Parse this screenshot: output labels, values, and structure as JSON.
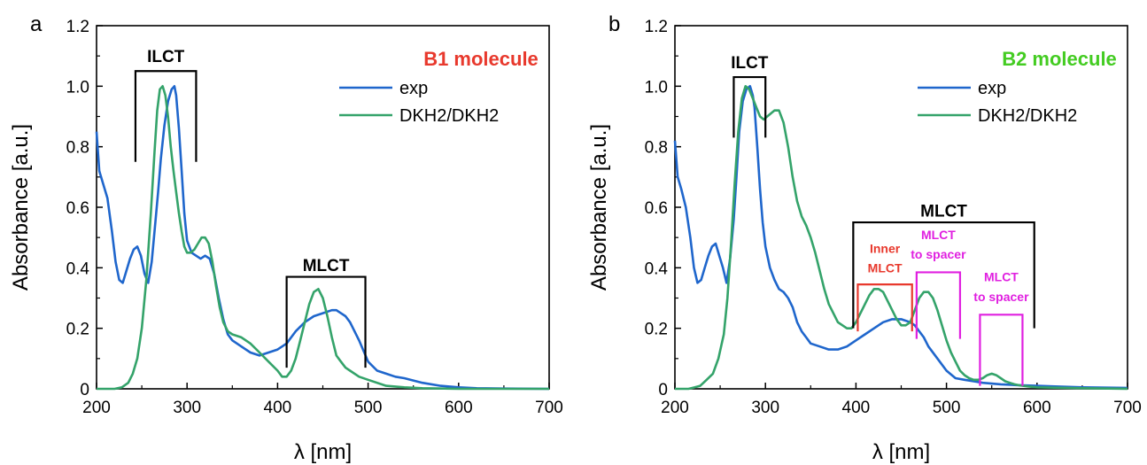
{
  "chart_data": [
    {
      "panel_label": "a",
      "type": "line",
      "xlabel": "λ [nm]",
      "ylabel": "Absorbance [a.u.]",
      "xlim": [
        200,
        700
      ],
      "ylim": [
        0,
        1.2
      ],
      "xticks": [
        "200",
        "300",
        "400",
        "500",
        "600",
        "700"
      ],
      "yticks": [
        "0",
        "0.2",
        "0.4",
        "0.6",
        "0.8",
        "1.0",
        "1.2"
      ],
      "grid": false,
      "legend_position": "top-right",
      "legend_title": "B1 molecule",
      "legend_title_color": "#e8392d",
      "series": [
        {
          "name": "exp",
          "color": "#1f66cc",
          "x": [
            200,
            203,
            207,
            212,
            217,
            221,
            225,
            229,
            233,
            237,
            241,
            245,
            249,
            253,
            257,
            261,
            265,
            268,
            271,
            275,
            279,
            283,
            286,
            288,
            291,
            294,
            297,
            300,
            305,
            310,
            315,
            320,
            325,
            330,
            335,
            340,
            345,
            350,
            360,
            370,
            380,
            390,
            400,
            410,
            420,
            430,
            440,
            450,
            460,
            465,
            470,
            475,
            480,
            490,
            500,
            510,
            520,
            530,
            540,
            560,
            580,
            600,
            620,
            650,
            700
          ],
          "y": [
            0.85,
            0.72,
            0.68,
            0.63,
            0.52,
            0.42,
            0.36,
            0.35,
            0.39,
            0.43,
            0.46,
            0.47,
            0.44,
            0.38,
            0.35,
            0.42,
            0.55,
            0.65,
            0.76,
            0.87,
            0.95,
            0.99,
            1.0,
            0.97,
            0.86,
            0.72,
            0.58,
            0.49,
            0.45,
            0.44,
            0.43,
            0.44,
            0.43,
            0.38,
            0.3,
            0.23,
            0.18,
            0.16,
            0.14,
            0.12,
            0.11,
            0.12,
            0.13,
            0.15,
            0.19,
            0.22,
            0.24,
            0.25,
            0.26,
            0.26,
            0.25,
            0.24,
            0.22,
            0.16,
            0.09,
            0.06,
            0.05,
            0.04,
            0.035,
            0.02,
            0.01,
            0.005,
            0.002,
            0.001,
            0.0
          ]
        },
        {
          "name": "DKH2/DKH2",
          "color": "#34a36a",
          "x": [
            200,
            220,
            228,
            235,
            240,
            245,
            250,
            255,
            260,
            264,
            267,
            270,
            273,
            276,
            279,
            282,
            285,
            288,
            291,
            294,
            297,
            300,
            304,
            308,
            312,
            316,
            320,
            324,
            328,
            332,
            336,
            340,
            345,
            350,
            360,
            370,
            380,
            390,
            400,
            405,
            410,
            415,
            420,
            425,
            430,
            435,
            440,
            445,
            450,
            455,
            460,
            465,
            470,
            475,
            480,
            490,
            500,
            520,
            540,
            560,
            600,
            700
          ],
          "y": [
            0.0,
            0.0,
            0.005,
            0.02,
            0.05,
            0.1,
            0.2,
            0.36,
            0.58,
            0.78,
            0.92,
            0.99,
            1.0,
            0.97,
            0.9,
            0.8,
            0.72,
            0.65,
            0.58,
            0.52,
            0.47,
            0.45,
            0.45,
            0.46,
            0.48,
            0.5,
            0.5,
            0.48,
            0.42,
            0.34,
            0.27,
            0.22,
            0.19,
            0.18,
            0.17,
            0.15,
            0.12,
            0.09,
            0.06,
            0.04,
            0.04,
            0.06,
            0.1,
            0.16,
            0.22,
            0.28,
            0.32,
            0.33,
            0.3,
            0.24,
            0.17,
            0.11,
            0.09,
            0.07,
            0.06,
            0.04,
            0.03,
            0.01,
            0.005,
            0.002,
            0.0,
            0.0
          ]
        }
      ],
      "brackets": [
        {
          "label": "ILCT",
          "color": "#000000",
          "x1": 243,
          "x2": 310,
          "top": 1.05,
          "bottom": 0.75,
          "label_y": 1.08
        },
        {
          "label": "MLCT",
          "color": "#000000",
          "x1": 410,
          "x2": 497,
          "top": 0.37,
          "bottom": 0.07,
          "label_y": 0.39
        }
      ]
    },
    {
      "panel_label": "b",
      "type": "line",
      "xlabel": "λ [nm]",
      "ylabel": "Absorbance [a.u.]",
      "xlim": [
        200,
        700
      ],
      "ylim": [
        0,
        1.2
      ],
      "xticks": [
        "200",
        "300",
        "400",
        "500",
        "600",
        "700"
      ],
      "yticks": [
        "0",
        "0.2",
        "0.4",
        "0.6",
        "0.8",
        "1.0",
        "1.2"
      ],
      "grid": false,
      "legend_position": "top-right",
      "legend_title": "B2 molecule",
      "legend_title_color": "#44cc22",
      "series": [
        {
          "name": "exp",
          "color": "#1f66cc",
          "x": [
            200,
            203,
            207,
            212,
            217,
            221,
            225,
            229,
            233,
            237,
            241,
            245,
            249,
            253,
            257,
            261,
            265,
            268,
            271,
            275,
            279,
            283,
            286,
            288,
            291,
            294,
            297,
            300,
            305,
            310,
            315,
            320,
            325,
            330,
            335,
            340,
            345,
            350,
            360,
            370,
            380,
            390,
            400,
            410,
            420,
            430,
            440,
            450,
            460,
            465,
            470,
            475,
            480,
            490,
            500,
            510,
            520,
            530,
            540,
            560,
            580,
            600,
            620,
            650,
            700
          ],
          "y": [
            0.82,
            0.7,
            0.66,
            0.6,
            0.5,
            0.4,
            0.35,
            0.36,
            0.4,
            0.44,
            0.47,
            0.48,
            0.44,
            0.4,
            0.35,
            0.43,
            0.56,
            0.7,
            0.85,
            0.95,
            0.99,
            1.0,
            0.97,
            0.93,
            0.8,
            0.66,
            0.55,
            0.47,
            0.4,
            0.36,
            0.33,
            0.32,
            0.3,
            0.27,
            0.22,
            0.19,
            0.17,
            0.15,
            0.14,
            0.13,
            0.13,
            0.14,
            0.16,
            0.18,
            0.2,
            0.22,
            0.23,
            0.23,
            0.22,
            0.21,
            0.19,
            0.17,
            0.14,
            0.1,
            0.06,
            0.035,
            0.03,
            0.025,
            0.02,
            0.015,
            0.012,
            0.01,
            0.008,
            0.005,
            0.003
          ]
        },
        {
          "name": "DKH2/DKH2",
          "color": "#34a36a",
          "x": [
            200,
            215,
            222,
            228,
            235,
            242,
            248,
            254,
            258,
            262,
            266,
            270,
            274,
            278,
            282,
            286,
            290,
            294,
            298,
            302,
            306,
            310,
            315,
            320,
            325,
            330,
            335,
            340,
            345,
            350,
            355,
            360,
            365,
            370,
            380,
            390,
            395,
            400,
            405,
            410,
            415,
            420,
            425,
            430,
            435,
            440,
            445,
            450,
            455,
            460,
            465,
            470,
            475,
            480,
            485,
            490,
            495,
            500,
            505,
            510,
            515,
            520,
            525,
            530,
            535,
            540,
            545,
            550,
            555,
            560,
            565,
            570,
            575,
            580,
            590,
            600,
            650,
            700
          ],
          "y": [
            0.0,
            0.0,
            0.005,
            0.01,
            0.03,
            0.05,
            0.1,
            0.18,
            0.3,
            0.48,
            0.68,
            0.85,
            0.96,
            1.0,
            0.99,
            0.96,
            0.93,
            0.9,
            0.89,
            0.9,
            0.91,
            0.92,
            0.92,
            0.88,
            0.8,
            0.7,
            0.62,
            0.57,
            0.54,
            0.5,
            0.45,
            0.39,
            0.33,
            0.28,
            0.22,
            0.2,
            0.2,
            0.22,
            0.25,
            0.28,
            0.31,
            0.33,
            0.33,
            0.32,
            0.29,
            0.26,
            0.23,
            0.21,
            0.21,
            0.22,
            0.26,
            0.3,
            0.32,
            0.32,
            0.3,
            0.26,
            0.21,
            0.16,
            0.12,
            0.09,
            0.06,
            0.045,
            0.035,
            0.03,
            0.03,
            0.035,
            0.045,
            0.05,
            0.045,
            0.035,
            0.025,
            0.02,
            0.015,
            0.012,
            0.008,
            0.005,
            0.002,
            0.0
          ]
        }
      ],
      "brackets": [
        {
          "label": "ILCT",
          "color": "#000000",
          "x1": 265,
          "x2": 300,
          "top": 1.03,
          "bottom": 0.83,
          "label_y": 1.06
        },
        {
          "label": "MLCT",
          "color": "#000000",
          "x1": 397,
          "x2": 597,
          "top": 0.55,
          "bottom": 0.2,
          "label_y": 0.57
        },
        {
          "label": "Inner",
          "label2": "MLCT",
          "color": "#e8392d",
          "x1": 402,
          "x2": 462,
          "top": 0.345,
          "bottom": 0.19,
          "label_y": 0.45,
          "label2_y": 0.385
        },
        {
          "label": "MLCT",
          "label2": "to spacer",
          "color": "#e020e0",
          "x1": 467,
          "x2": 515,
          "top": 0.385,
          "bottom": 0.165,
          "label_y": 0.495,
          "label2_y": 0.43
        },
        {
          "label": "MLCT",
          "label2": "to spacer",
          "color": "#e020e0",
          "x1": 537,
          "x2": 584,
          "top": 0.245,
          "bottom": 0.01,
          "label_y": 0.355,
          "label2_y": 0.29
        }
      ]
    }
  ]
}
